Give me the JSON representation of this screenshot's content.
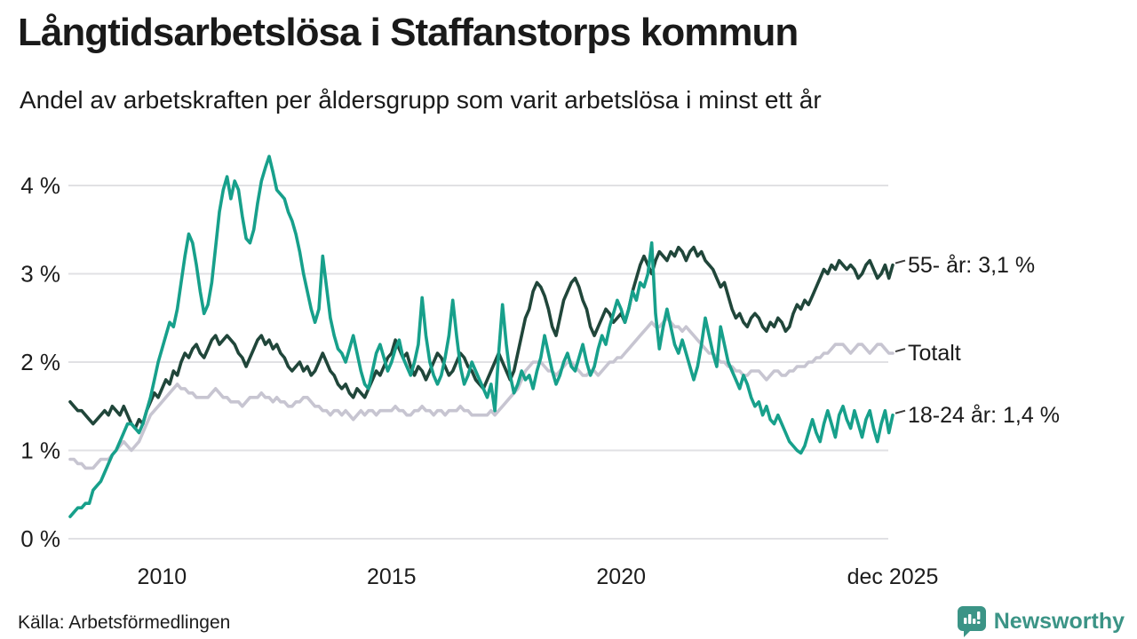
{
  "header": {
    "title": "Långtidsarbetslösa i Staffanstorps kommun",
    "subtitle": "Andel av arbetskraften per åldersgrupp som varit arbetslösa i minst ett år"
  },
  "footer": {
    "source": "Källa: Arbetsförmedlingen",
    "brand": "Newsworthy",
    "brand_color": "#3b9486"
  },
  "chart_data": {
    "type": "line",
    "title": "Långtidsarbetslösa i Staffanstorps kommun",
    "subtitle": "Andel av arbetskraften per åldersgrupp som varit arbetslösa i minst ett år",
    "x_start": "2008-01",
    "x_end": "2025-12",
    "x_frequency": "monthly",
    "ylim": [
      0,
      4.4
    ],
    "grid": true,
    "gridline_color": "#e1e1e4",
    "axis_text_color": "#1c1c1c",
    "legend_position": "right-of-line-end",
    "yticks": [
      {
        "value": 0,
        "label": "0 %"
      },
      {
        "value": 1,
        "label": "1 %"
      },
      {
        "value": 2,
        "label": "2 %"
      },
      {
        "value": 3,
        "label": "3 %"
      },
      {
        "value": 4,
        "label": "4 %"
      }
    ],
    "xticks": [
      {
        "month_index": 24,
        "label": "2010"
      },
      {
        "month_index": 84,
        "label": "2015"
      },
      {
        "month_index": 144,
        "label": "2020"
      },
      {
        "month_index": 215,
        "label": "dec 2025"
      }
    ],
    "series": [
      {
        "id": "totalt",
        "name": "Totalt",
        "label": "Totalt",
        "color": "#c7c5d1",
        "last_value": 2.1,
        "values": [
          0.9,
          0.9,
          0.85,
          0.85,
          0.8,
          0.8,
          0.8,
          0.85,
          0.9,
          0.9,
          0.9,
          0.95,
          1.0,
          1.05,
          1.1,
          1.05,
          1.0,
          1.05,
          1.1,
          1.2,
          1.3,
          1.4,
          1.45,
          1.5,
          1.55,
          1.6,
          1.65,
          1.7,
          1.75,
          1.7,
          1.7,
          1.65,
          1.65,
          1.6,
          1.6,
          1.6,
          1.6,
          1.65,
          1.7,
          1.65,
          1.6,
          1.6,
          1.55,
          1.55,
          1.55,
          1.5,
          1.55,
          1.6,
          1.6,
          1.6,
          1.65,
          1.6,
          1.6,
          1.55,
          1.6,
          1.55,
          1.55,
          1.5,
          1.5,
          1.55,
          1.55,
          1.6,
          1.6,
          1.55,
          1.5,
          1.5,
          1.45,
          1.45,
          1.4,
          1.45,
          1.45,
          1.4,
          1.45,
          1.4,
          1.35,
          1.4,
          1.45,
          1.4,
          1.45,
          1.45,
          1.4,
          1.45,
          1.45,
          1.45,
          1.45,
          1.5,
          1.45,
          1.45,
          1.4,
          1.4,
          1.45,
          1.45,
          1.5,
          1.45,
          1.45,
          1.4,
          1.45,
          1.45,
          1.4,
          1.45,
          1.45,
          1.45,
          1.5,
          1.45,
          1.45,
          1.4,
          1.4,
          1.4,
          1.4,
          1.4,
          1.45,
          1.4,
          1.45,
          1.5,
          1.55,
          1.6,
          1.65,
          1.7,
          1.8,
          1.9,
          1.95,
          2.0,
          2.0,
          2.0,
          1.95,
          1.9,
          1.9,
          1.85,
          1.9,
          1.95,
          2.0,
          2.0,
          1.95,
          1.9,
          1.85,
          1.85,
          1.9,
          1.9,
          1.85,
          1.9,
          1.95,
          2.0,
          2.0,
          2.05,
          2.05,
          2.1,
          2.15,
          2.2,
          2.25,
          2.3,
          2.35,
          2.4,
          2.45,
          2.4,
          2.4,
          2.45,
          2.5,
          2.45,
          2.4,
          2.4,
          2.35,
          2.4,
          2.35,
          2.3,
          2.25,
          2.2,
          2.15,
          2.1,
          2.1,
          2.05,
          2.0,
          2.0,
          1.95,
          1.95,
          1.9,
          1.9,
          1.85,
          1.85,
          1.9,
          1.9,
          1.9,
          1.85,
          1.8,
          1.85,
          1.9,
          1.9,
          1.85,
          1.85,
          1.9,
          1.9,
          1.95,
          1.95,
          1.95,
          2.0,
          2.0,
          2.05,
          2.05,
          2.1,
          2.1,
          2.15,
          2.2,
          2.2,
          2.2,
          2.15,
          2.1,
          2.15,
          2.2,
          2.2,
          2.15,
          2.1,
          2.15,
          2.2,
          2.2,
          2.15,
          2.1,
          2.1
        ]
      },
      {
        "id": "55",
        "name": "55- år",
        "label": "55- år: 3,1 %",
        "color": "#20463a",
        "last_value": 3.1,
        "values": [
          1.55,
          1.5,
          1.45,
          1.45,
          1.4,
          1.35,
          1.3,
          1.35,
          1.4,
          1.45,
          1.4,
          1.5,
          1.45,
          1.4,
          1.5,
          1.4,
          1.3,
          1.25,
          1.35,
          1.3,
          1.45,
          1.55,
          1.65,
          1.6,
          1.7,
          1.8,
          1.75,
          1.9,
          1.85,
          2.0,
          2.1,
          2.05,
          2.15,
          2.2,
          2.1,
          2.05,
          2.15,
          2.25,
          2.3,
          2.2,
          2.25,
          2.3,
          2.25,
          2.2,
          2.1,
          2.05,
          1.95,
          2.05,
          2.15,
          2.25,
          2.3,
          2.2,
          2.25,
          2.15,
          2.2,
          2.1,
          2.05,
          1.95,
          1.9,
          1.95,
          2.0,
          1.9,
          1.95,
          1.85,
          1.9,
          2.0,
          2.1,
          2.0,
          1.9,
          1.85,
          1.75,
          1.7,
          1.75,
          1.65,
          1.6,
          1.7,
          1.65,
          1.6,
          1.7,
          1.8,
          1.9,
          1.85,
          1.95,
          2.05,
          2.1,
          2.25,
          2.15,
          2.05,
          2.1,
          1.95,
          1.85,
          1.95,
          1.9,
          1.8,
          1.9,
          2.0,
          2.1,
          2.05,
          1.95,
          1.85,
          1.9,
          2.0,
          2.1,
          2.05,
          1.95,
          1.9,
          1.8,
          1.75,
          1.7,
          1.8,
          1.9,
          2.0,
          2.1,
          2.0,
          1.9,
          1.8,
          1.9,
          2.1,
          2.3,
          2.5,
          2.6,
          2.8,
          2.9,
          2.85,
          2.75,
          2.6,
          2.4,
          2.3,
          2.5,
          2.7,
          2.8,
          2.9,
          2.95,
          2.85,
          2.7,
          2.6,
          2.4,
          2.3,
          2.4,
          2.5,
          2.6,
          2.55,
          2.45,
          2.5,
          2.55,
          2.45,
          2.6,
          2.8,
          2.95,
          3.1,
          3.2,
          3.1,
          3.0,
          3.15,
          3.25,
          3.2,
          3.15,
          3.25,
          3.2,
          3.3,
          3.25,
          3.15,
          3.25,
          3.3,
          3.2,
          3.25,
          3.15,
          3.1,
          3.05,
          2.95,
          2.85,
          2.9,
          2.75,
          2.6,
          2.5,
          2.55,
          2.45,
          2.4,
          2.5,
          2.55,
          2.5,
          2.4,
          2.35,
          2.45,
          2.4,
          2.5,
          2.45,
          2.35,
          2.4,
          2.55,
          2.65,
          2.6,
          2.7,
          2.65,
          2.75,
          2.85,
          2.95,
          3.05,
          3.0,
          3.1,
          3.05,
          3.15,
          3.1,
          3.05,
          3.1,
          3.05,
          2.95,
          3.0,
          3.1,
          3.15,
          3.05,
          2.95,
          3.0,
          3.1,
          2.95,
          3.1
        ]
      },
      {
        "id": "1824",
        "name": "18-24 år",
        "label": "18-24 år: 1,4 %",
        "color": "#17a08b",
        "last_value": 1.4,
        "values": [
          0.25,
          0.3,
          0.35,
          0.35,
          0.4,
          0.4,
          0.55,
          0.6,
          0.65,
          0.75,
          0.85,
          0.95,
          1.0,
          1.1,
          1.2,
          1.3,
          1.3,
          1.25,
          1.2,
          1.3,
          1.45,
          1.6,
          1.8,
          2.0,
          2.15,
          2.3,
          2.45,
          2.4,
          2.6,
          2.9,
          3.2,
          3.45,
          3.35,
          3.1,
          2.8,
          2.55,
          2.65,
          2.9,
          3.3,
          3.7,
          3.95,
          4.1,
          3.85,
          4.05,
          3.95,
          3.65,
          3.4,
          3.35,
          3.5,
          3.8,
          4.05,
          4.2,
          4.33,
          4.15,
          3.95,
          3.9,
          3.85,
          3.7,
          3.6,
          3.45,
          3.25,
          3.0,
          2.8,
          2.6,
          2.45,
          2.6,
          3.2,
          2.85,
          2.5,
          2.3,
          2.15,
          2.1,
          2.0,
          2.15,
          2.3,
          2.1,
          1.9,
          1.75,
          1.7,
          1.9,
          2.1,
          2.2,
          2.05,
          1.9,
          2.0,
          2.15,
          2.25,
          2.05,
          1.95,
          1.85,
          2.0,
          2.2,
          2.73,
          2.3,
          2.0,
          1.85,
          1.75,
          1.85,
          2.05,
          2.3,
          2.7,
          2.3,
          1.95,
          1.75,
          1.85,
          2.0,
          1.9,
          1.8,
          1.7,
          1.6,
          1.75,
          1.45,
          2.1,
          2.65,
          2.2,
          1.85,
          1.65,
          1.75,
          1.9,
          1.8,
          1.85,
          1.7,
          1.9,
          2.05,
          2.3,
          2.1,
          1.9,
          1.75,
          1.85,
          2.0,
          2.1,
          1.95,
          1.9,
          2.05,
          2.2,
          2.0,
          1.85,
          1.95,
          2.15,
          2.3,
          2.2,
          2.4,
          2.55,
          2.7,
          2.6,
          2.45,
          2.6,
          2.8,
          2.7,
          2.9,
          2.85,
          3.0,
          3.35,
          2.55,
          2.15,
          2.4,
          2.6,
          2.4,
          2.2,
          2.1,
          2.25,
          2.1,
          1.95,
          1.8,
          1.95,
          2.2,
          2.5,
          2.3,
          2.1,
          1.95,
          2.4,
          2.2,
          2.0,
          1.9,
          1.8,
          1.7,
          1.85,
          1.75,
          1.6,
          1.5,
          1.55,
          1.4,
          1.5,
          1.35,
          1.3,
          1.4,
          1.3,
          1.2,
          1.1,
          1.05,
          1.0,
          0.97,
          1.05,
          1.2,
          1.35,
          1.2,
          1.1,
          1.3,
          1.45,
          1.3,
          1.15,
          1.4,
          1.5,
          1.35,
          1.25,
          1.45,
          1.3,
          1.15,
          1.35,
          1.45,
          1.25,
          1.1,
          1.3,
          1.45,
          1.2,
          1.4
        ]
      }
    ]
  }
}
